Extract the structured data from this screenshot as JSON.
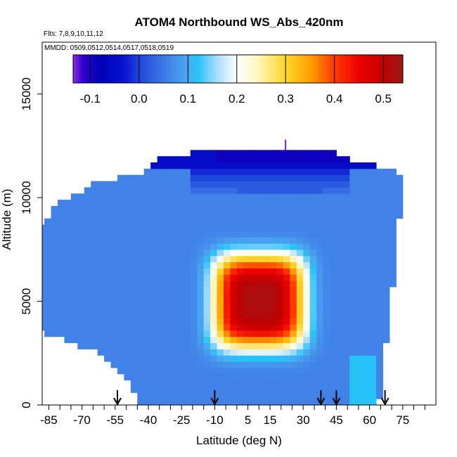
{
  "chart_data": {
    "type": "heatmap",
    "title": "ATOM4 Northbound WS_Abs_420nm",
    "flights_label": "Flts: 7,8,9,10,11,12",
    "dates_label": "MMDD: 0509,0512,0514,0517,0518,0519",
    "xlabel": "Latitude (deg N)",
    "ylabel": "Altitude (m)",
    "xlim": [
      -88,
      90
    ],
    "ylim": [
      0,
      17500
    ],
    "x_ticks": [
      -85,
      -70,
      -55,
      -40,
      -25,
      -10,
      5,
      15,
      30,
      45,
      60,
      75
    ],
    "y_ticks": [
      0,
      5000,
      10000,
      15000
    ],
    "colorbar": {
      "range": [
        -0.135,
        0.54
      ],
      "ticks": [
        "-0.1",
        "0.0",
        "0.1",
        "0.2",
        "0.3",
        "0.4",
        "0.5"
      ],
      "tick_values": [
        -0.1,
        0.0,
        0.1,
        0.2,
        0.3,
        0.4,
        0.5
      ],
      "stops": [
        {
          "v": -0.135,
          "c": "#8b2be2"
        },
        {
          "v": -0.115,
          "c": "#3300cc"
        },
        {
          "v": -0.08,
          "c": "#0000b8"
        },
        {
          "v": -0.03,
          "c": "#0a14d2"
        },
        {
          "v": 0.0,
          "c": "#1e46dc"
        },
        {
          "v": 0.05,
          "c": "#3f78e6"
        },
        {
          "v": 0.1,
          "c": "#4aaaf2"
        },
        {
          "v": 0.12,
          "c": "#26c4f6"
        },
        {
          "v": 0.16,
          "c": "#aadcfa"
        },
        {
          "v": 0.2,
          "c": "#ffffff"
        },
        {
          "v": 0.24,
          "c": "#fff8c4"
        },
        {
          "v": 0.3,
          "c": "#ffd62a"
        },
        {
          "v": 0.35,
          "c": "#ffa000"
        },
        {
          "v": 0.4,
          "c": "#ff3a00"
        },
        {
          "v": 0.45,
          "c": "#ee0000"
        },
        {
          "v": 0.5,
          "c": "#c00000"
        },
        {
          "v": 0.54,
          "c": "#9a1a1a"
        }
      ]
    },
    "profile_latitudes": [
      -54,
      -10,
      38,
      45,
      67
    ],
    "data_domain_edges": {
      "altitudes": [
        200,
        1200,
        2400,
        3600,
        4800,
        6000,
        7200,
        8400,
        9600,
        10300,
        10800,
        11300,
        11800,
        12300
      ],
      "west_latitude": [
        -45,
        -48,
        -60,
        -90,
        -90,
        -90,
        -90,
        -90,
        -82,
        -71,
        -62,
        -40,
        -40,
        -13
      ],
      "east_latitude": [
        64,
        66,
        67,
        68,
        69,
        71,
        72,
        73,
        74,
        76,
        75,
        70,
        53,
        42
      ]
    },
    "plume": {
      "center_lat": 10,
      "center_alt": 5000,
      "peak_value": 0.52,
      "background_value": 0.06
    },
    "upper_troposphere": {
      "value": -0.05,
      "top_cap_value": -0.09,
      "spike_value": -0.13
    }
  }
}
